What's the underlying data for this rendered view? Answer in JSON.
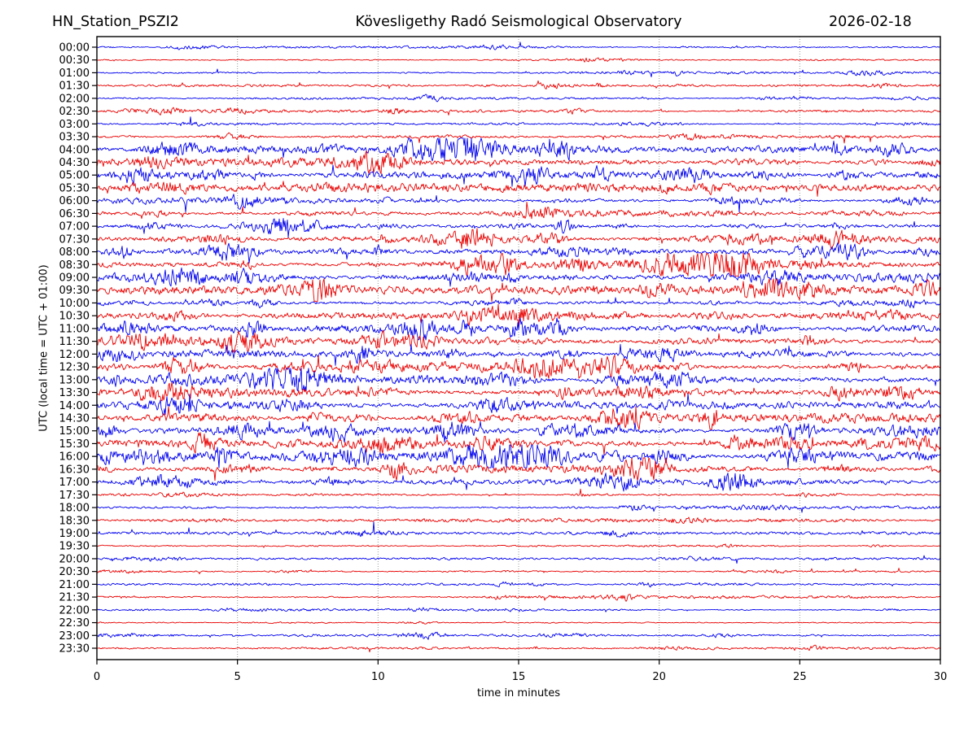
{
  "header": {
    "station": "HN_Station_PSZI2",
    "title": "Kövesligethy Radó Seismological Observatory",
    "date": "2026-02-18"
  },
  "axes": {
    "xlabel": "time in minutes",
    "ylabel": "UTC (local time = UTC + 01:00)"
  },
  "chart_data": {
    "type": "line",
    "variant": "helicorder-dayplot",
    "title": "Kövesligethy Radó Seismological Observatory",
    "station": "HN_Station_PSZI2",
    "date": "2026-02-18",
    "xlabel": "time in minutes",
    "ylabel": "UTC (local time = UTC + 01:00)",
    "xlim": [
      0,
      30
    ],
    "x_ticks": [
      0,
      5,
      10,
      15,
      20,
      25,
      30
    ],
    "minutes_per_row": 30,
    "grid": {
      "vertical_dotted_at_minutes": [
        5,
        10,
        15,
        20,
        25
      ],
      "color": "#9a9a9a"
    },
    "colors": {
      "blue": "#0000ee",
      "red": "#e80000",
      "frame": "#000000"
    },
    "rows": [
      {
        "label": "00:00",
        "color": "blue",
        "amp": 0.9
      },
      {
        "label": "00:30",
        "color": "red",
        "amp": 0.9
      },
      {
        "label": "01:00",
        "color": "blue",
        "amp": 0.9
      },
      {
        "label": "01:30",
        "color": "red",
        "amp": 1.0
      },
      {
        "label": "02:00",
        "color": "blue",
        "amp": 0.9
      },
      {
        "label": "02:30",
        "color": "red",
        "amp": 1.1
      },
      {
        "label": "03:00",
        "color": "blue",
        "amp": 1.0
      },
      {
        "label": "03:30",
        "color": "red",
        "amp": 1.6
      },
      {
        "label": "04:00",
        "color": "blue",
        "amp": 2.7
      },
      {
        "label": "04:30",
        "color": "red",
        "amp": 3.1
      },
      {
        "label": "05:00",
        "color": "blue",
        "amp": 3.3
      },
      {
        "label": "05:30",
        "color": "red",
        "amp": 3.1
      },
      {
        "label": "06:00",
        "color": "blue",
        "amp": 2.7
      },
      {
        "label": "06:30",
        "color": "red",
        "amp": 2.7
      },
      {
        "label": "07:00",
        "color": "blue",
        "amp": 2.4
      },
      {
        "label": "07:30",
        "color": "red",
        "amp": 2.3
      },
      {
        "label": "08:00",
        "color": "blue",
        "amp": 2.9
      },
      {
        "label": "08:30",
        "color": "red",
        "amp": 3.3
      },
      {
        "label": "09:00",
        "color": "blue",
        "amp": 3.7
      },
      {
        "label": "09:30",
        "color": "red",
        "amp": 3.1
      },
      {
        "label": "10:00",
        "color": "blue",
        "amp": 2.9
      },
      {
        "label": "10:30",
        "color": "red",
        "amp": 3.5
      },
      {
        "label": "11:00",
        "color": "blue",
        "amp": 3.3
      },
      {
        "label": "11:30",
        "color": "red",
        "amp": 3.9
      },
      {
        "label": "12:00",
        "color": "blue",
        "amp": 3.5
      },
      {
        "label": "12:30",
        "color": "red",
        "amp": 3.9
      },
      {
        "label": "13:00",
        "color": "blue",
        "amp": 3.3
      },
      {
        "label": "13:30",
        "color": "red",
        "amp": 3.5
      },
      {
        "label": "14:00",
        "color": "blue",
        "amp": 3.9
      },
      {
        "label": "14:30",
        "color": "red",
        "amp": 3.5
      },
      {
        "label": "15:00",
        "color": "blue",
        "amp": 3.1
      },
      {
        "label": "15:30",
        "color": "red",
        "amp": 3.3
      },
      {
        "label": "16:00",
        "color": "blue",
        "amp": 3.5
      },
      {
        "label": "16:30",
        "color": "red",
        "amp": 3.1
      },
      {
        "label": "17:00",
        "color": "blue",
        "amp": 2.3
      },
      {
        "label": "17:30",
        "color": "red",
        "amp": 1.2
      },
      {
        "label": "18:00",
        "color": "blue",
        "amp": 1.2
      },
      {
        "label": "18:30",
        "color": "red",
        "amp": 1.4
      },
      {
        "label": "19:00",
        "color": "blue",
        "amp": 1.1
      },
      {
        "label": "19:30",
        "color": "red",
        "amp": 0.9
      },
      {
        "label": "20:00",
        "color": "blue",
        "amp": 0.9
      },
      {
        "label": "20:30",
        "color": "red",
        "amp": 0.9
      },
      {
        "label": "21:00",
        "color": "blue",
        "amp": 1.0
      },
      {
        "label": "21:30",
        "color": "red",
        "amp": 1.2
      },
      {
        "label": "22:00",
        "color": "blue",
        "amp": 0.9
      },
      {
        "label": "22:30",
        "color": "red",
        "amp": 0.9
      },
      {
        "label": "23:00",
        "color": "blue",
        "amp": 1.1
      },
      {
        "label": "23:30",
        "color": "red",
        "amp": 0.9
      }
    ],
    "events": [
      {
        "row_label": "08:30",
        "start_min": 21.5,
        "end_min": 23.8,
        "gain": 2.2
      },
      {
        "row_label": "09:00",
        "start_min": 1.2,
        "end_min": 5.5,
        "gain": 1.2
      },
      {
        "row_label": "16:00",
        "start_min": 0.0,
        "end_min": 0.6,
        "gain": 2.5
      },
      {
        "row_label": "16:30",
        "start_min": 0.0,
        "end_min": 0.5,
        "gain": 2.0
      }
    ]
  }
}
